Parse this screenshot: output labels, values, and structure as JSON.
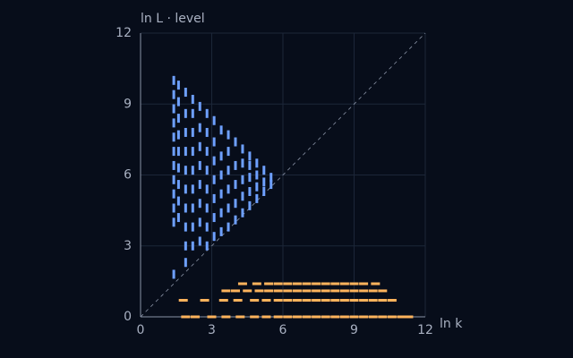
{
  "chart_data": {
    "type": "scatter",
    "x_label": "ln k",
    "y_label": "ln L · level",
    "xlim": [
      0,
      12
    ],
    "ylim": [
      0,
      12
    ],
    "xticks": [
      0,
      3,
      6,
      9,
      12
    ],
    "yticks": [
      0,
      3,
      6,
      9,
      12
    ],
    "grid": true,
    "series": [
      {
        "color": "#6ea0ff",
        "x": [
          1.4,
          1.4,
          1.4,
          1.4,
          1.4,
          1.4,
          1.4,
          1.4,
          1.4,
          1.4,
          1.4,
          1.4,
          1.6,
          1.6,
          1.6,
          1.6,
          1.6,
          1.6,
          1.6,
          1.6,
          1.6,
          1.9,
          1.9,
          1.9,
          1.9,
          1.9,
          1.9,
          1.9,
          1.9,
          1.9,
          1.9,
          2.2,
          2.2,
          2.2,
          2.2,
          2.2,
          2.2,
          2.2,
          2.2,
          2.2,
          2.5,
          2.5,
          2.5,
          2.5,
          2.5,
          2.5,
          2.5,
          2.5,
          2.8,
          2.8,
          2.8,
          2.8,
          2.8,
          2.8,
          2.8,
          2.8,
          3.1,
          3.1,
          3.1,
          3.1,
          3.1,
          3.1,
          3.1,
          3.4,
          3.4,
          3.4,
          3.4,
          3.4,
          3.4,
          3.7,
          3.7,
          3.7,
          3.7,
          3.7,
          3.7,
          4.0,
          4.0,
          4.0,
          4.0,
          4.0,
          4.3,
          4.3,
          4.3,
          4.3,
          4.3,
          4.6,
          4.6,
          4.6,
          4.6,
          4.6,
          4.9,
          4.9,
          4.9,
          4.9,
          5.2,
          5.2,
          5.2,
          5.5,
          5.5
        ],
        "values": [
          1.8,
          4.0,
          4.6,
          5.2,
          5.8,
          6.4,
          7.0,
          7.6,
          8.2,
          8.8,
          9.4,
          10.0,
          4.2,
          4.9,
          5.6,
          6.3,
          7.0,
          7.7,
          8.4,
          9.1,
          9.8,
          2.3,
          3.0,
          3.8,
          4.6,
          5.4,
          6.2,
          7.0,
          7.8,
          8.6,
          9.5,
          3.0,
          3.8,
          4.6,
          5.4,
          6.2,
          7.0,
          7.8,
          8.6,
          9.2,
          3.2,
          4.0,
          4.8,
          5.6,
          6.4,
          7.2,
          8.0,
          8.9,
          3.0,
          3.8,
          4.6,
          5.4,
          6.2,
          7.0,
          7.8,
          8.6,
          3.4,
          4.2,
          5.0,
          5.8,
          6.6,
          7.4,
          8.3,
          3.6,
          4.4,
          5.2,
          6.0,
          6.8,
          7.9,
          3.8,
          4.6,
          5.4,
          6.2,
          7.0,
          7.7,
          4.1,
          4.8,
          5.6,
          6.4,
          7.4,
          4.4,
          5.1,
          5.8,
          6.5,
          7.1,
          4.7,
          5.3,
          5.9,
          6.4,
          6.8,
          5.0,
          5.5,
          6.0,
          6.5,
          5.3,
          5.7,
          6.2,
          5.6,
          5.9
        ]
      },
      {
        "color": "#ffb35c",
        "x": [
          1.9,
          2.3,
          3.0,
          3.6,
          4.2,
          4.8,
          5.3,
          5.8,
          6.2,
          6.6,
          7.0,
          7.4,
          7.8,
          8.2,
          8.6,
          9.0,
          9.4,
          9.8,
          10.2,
          10.6,
          11.0,
          11.3,
          1.8,
          2.7,
          3.5,
          4.1,
          4.8,
          5.3,
          5.8,
          6.2,
          6.6,
          7.0,
          7.4,
          7.8,
          8.2,
          8.6,
          9.0,
          9.4,
          9.8,
          10.2,
          10.6,
          3.6,
          4.0,
          4.5,
          5.0,
          5.4,
          5.8,
          6.2,
          6.6,
          7.0,
          7.4,
          7.8,
          8.2,
          8.6,
          9.0,
          9.4,
          9.8,
          10.2,
          4.3,
          4.9,
          5.4,
          5.8,
          6.2,
          6.6,
          7.0,
          7.4,
          7.8,
          8.2,
          8.6,
          9.0,
          9.4,
          9.9
        ],
        "values": [
          0,
          0,
          0,
          0,
          0,
          0,
          0,
          0,
          0,
          0,
          0,
          0,
          0,
          0,
          0,
          0,
          0,
          0,
          0,
          0,
          0,
          0,
          0.7,
          0.7,
          0.7,
          0.7,
          0.7,
          0.7,
          0.7,
          0.7,
          0.7,
          0.7,
          0.7,
          0.7,
          0.7,
          0.7,
          0.7,
          0.7,
          0.7,
          0.7,
          0.7,
          1.1,
          1.1,
          1.1,
          1.1,
          1.1,
          1.1,
          1.1,
          1.1,
          1.1,
          1.1,
          1.1,
          1.1,
          1.1,
          1.1,
          1.1,
          1.1,
          1.1,
          1.4,
          1.4,
          1.4,
          1.4,
          1.4,
          1.4,
          1.4,
          1.4,
          1.4,
          1.4,
          1.4,
          1.4,
          1.4,
          1.4
        ]
      }
    ]
  }
}
